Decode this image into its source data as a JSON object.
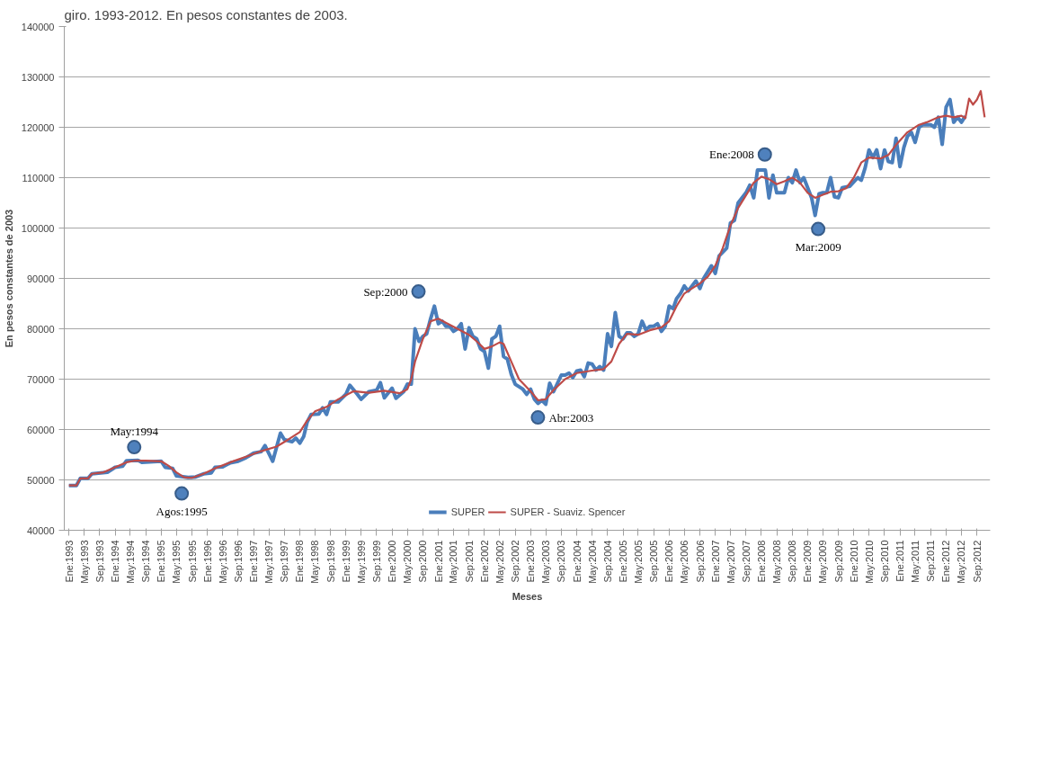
{
  "chart_data": {
    "type": "line",
    "title": "giro. 1993-2012. En pesos constantes de 2003.",
    "xlabel": "Meses",
    "ylabel": "En pesos constantes de 2003",
    "series": [
      {
        "name": "SUPER",
        "color": "#4a7ebb",
        "x": [
          "1993-01",
          "1993-03",
          "1993-04",
          "1993-06",
          "1993-07",
          "1993-11",
          "1994-01",
          "1994-03",
          "1994-04",
          "1994-07",
          "1994-08",
          "1995-01",
          "1995-02",
          "1995-04",
          "1995-05",
          "1995-08",
          "1995-10",
          "1995-12",
          "1996-02",
          "1996-03",
          "1996-05",
          "1996-07",
          "1996-09",
          "1996-11",
          "1997-01",
          "1997-03",
          "1997-04",
          "1997-06",
          "1997-08",
          "1997-09",
          "1997-11",
          "1997-12",
          "1998-01",
          "1998-02",
          "1998-03",
          "1998-04",
          "1998-06",
          "1998-07",
          "1998-08",
          "1998-09",
          "1998-11",
          "1999-01",
          "1999-02",
          "1999-04",
          "1999-05",
          "1999-07",
          "1999-09",
          "1999-10",
          "1999-11",
          "2000-01",
          "2000-02",
          "2000-04",
          "2000-05",
          "2000-06",
          "2000-07",
          "2000-08",
          "2000-09",
          "2000-10",
          "2000-11",
          "2000-12",
          "2001-01",
          "2001-02",
          "2001-03",
          "2001-04",
          "2001-05",
          "2001-06",
          "2001-07",
          "2001-08",
          "2001-09",
          "2001-10",
          "2001-11",
          "2001-12",
          "2002-01",
          "2002-02",
          "2002-03",
          "2002-04",
          "2002-05",
          "2002-06",
          "2002-07",
          "2002-08",
          "2002-09",
          "2002-11",
          "2002-12",
          "2003-01",
          "2003-02",
          "2003-03",
          "2003-04",
          "2003-05",
          "2003-06",
          "2003-07",
          "2003-09",
          "2003-10",
          "2003-11",
          "2003-12",
          "2004-01",
          "2004-02",
          "2004-03",
          "2004-04",
          "2004-05",
          "2004-06",
          "2004-07",
          "2004-08",
          "2004-09",
          "2004-10",
          "2004-11",
          "2004-12",
          "2005-01",
          "2005-02",
          "2005-03",
          "2005-04",
          "2005-05",
          "2005-06",
          "2005-07",
          "2005-08",
          "2005-09",
          "2005-10",
          "2005-11",
          "2005-12",
          "2006-01",
          "2006-02",
          "2006-03",
          "2006-04",
          "2006-05",
          "2006-06",
          "2006-07",
          "2006-08",
          "2006-09",
          "2006-10",
          "2006-12",
          "2007-01",
          "2007-02",
          "2007-04",
          "2007-05",
          "2007-06",
          "2007-07",
          "2007-09",
          "2007-10",
          "2007-11",
          "2007-12",
          "2008-02",
          "2008-03",
          "2008-04",
          "2008-05",
          "2008-07",
          "2008-08",
          "2008-09",
          "2008-10",
          "2008-11",
          "2008-12",
          "2009-02",
          "2009-03",
          "2009-04",
          "2009-05",
          "2009-06",
          "2009-07",
          "2009-08",
          "2009-09",
          "2009-10",
          "2009-12",
          "2010-02",
          "2010-03",
          "2010-04",
          "2010-05",
          "2010-06",
          "2010-07",
          "2010-08",
          "2010-09",
          "2010-10",
          "2010-11",
          "2010-12",
          "2011-01",
          "2011-02",
          "2011-03",
          "2011-04",
          "2011-05",
          "2011-06",
          "2011-07",
          "2011-08",
          "2011-09",
          "2011-10",
          "2011-11",
          "2011-12",
          "2012-01",
          "2012-02",
          "2012-03",
          "2012-04",
          "2012-05",
          "2012-06"
        ],
        "values": [
          48900,
          48900,
          50300,
          50300,
          51200,
          51500,
          52500,
          52700,
          53800,
          53900,
          53500,
          53700,
          52500,
          52300,
          50800,
          50500,
          50600,
          51200,
          51400,
          52500,
          52600,
          53400,
          53700,
          54400,
          55300,
          55600,
          56800,
          53700,
          59300,
          58000,
          57600,
          58300,
          57300,
          58600,
          61500,
          63000,
          63100,
          64300,
          63000,
          65500,
          65500,
          67000,
          68800,
          67000,
          66000,
          67500,
          67800,
          69300,
          66300,
          68200,
          66200,
          67500,
          69000,
          69000,
          80000,
          77500,
          78500,
          79000,
          82000,
          84500,
          81000,
          81500,
          80500,
          80500,
          79500,
          80000,
          81000,
          76000,
          80200,
          78500,
          78000,
          76000,
          75500,
          72200,
          78000,
          78500,
          80500,
          74500,
          74000,
          71000,
          69000,
          68000,
          67000,
          68000,
          66000,
          65200,
          65800,
          65000,
          69200,
          67500,
          70800,
          70800,
          71200,
          70300,
          71600,
          71800,
          70500,
          73200,
          73000,
          71800,
          72500,
          71800,
          79000,
          76500,
          83200,
          78500,
          78000,
          79200,
          79200,
          78500,
          79000,
          81500,
          79800,
          80500,
          80500,
          81000,
          79500,
          80500,
          84500,
          84000,
          86000,
          87000,
          88500,
          87500,
          88500,
          89500,
          88000,
          90000,
          92500,
          91000,
          94500,
          96000,
          101000,
          101500,
          105000,
          107000,
          108500,
          106000,
          111500,
          111500,
          106000,
          110500,
          107000,
          107000,
          110000,
          109000,
          111500,
          109000,
          110000,
          106000,
          102500,
          106800,
          107000,
          107000,
          110000,
          106200,
          106000,
          108000,
          108300,
          110000,
          109500,
          112000,
          115500,
          114000,
          115500,
          111800,
          115500,
          113200,
          113000,
          117800,
          112200,
          116000,
          118200,
          119000,
          117000,
          120000,
          120500,
          120500,
          120500,
          120000,
          122000,
          116600,
          124000,
          125500,
          121000,
          122000,
          121000,
          122200
        ]
      },
      {
        "name": "SUPER - Suaviz. Spencer",
        "color": "#be4b48",
        "x": [
          "1993-01",
          "1993-03",
          "1993-04",
          "1993-06",
          "1993-07",
          "1993-10",
          "1994-01",
          "1994-04",
          "1994-06",
          "1994-09",
          "1995-01",
          "1995-03",
          "1995-05",
          "1995-07",
          "1995-09",
          "1995-12",
          "1996-03",
          "1996-07",
          "1996-11",
          "1997-03",
          "1997-07",
          "1997-10",
          "1998-01",
          "1998-03",
          "1998-05",
          "1998-08",
          "1998-11",
          "1999-03",
          "1999-07",
          "1999-11",
          "2000-03",
          "2000-05",
          "2000-06",
          "2000-07",
          "2000-09",
          "2000-11",
          "2001-01",
          "2001-03",
          "2001-06",
          "2001-09",
          "2001-11",
          "2002-01",
          "2002-03",
          "2002-05",
          "2002-06",
          "2002-08",
          "2002-10",
          "2003-01",
          "2003-03",
          "2003-05",
          "2003-07",
          "2003-10",
          "2004-01",
          "2004-05",
          "2004-08",
          "2004-10",
          "2004-12",
          "2005-02",
          "2005-05",
          "2005-08",
          "2005-11",
          "2006-01",
          "2006-03",
          "2006-05",
          "2006-07",
          "2006-09",
          "2006-11",
          "2007-01",
          "2007-03",
          "2007-05",
          "2007-07",
          "2007-09",
          "2007-11",
          "2008-01",
          "2008-03",
          "2008-05",
          "2008-07",
          "2008-09",
          "2008-11",
          "2009-01",
          "2009-03",
          "2009-05",
          "2009-07",
          "2009-09",
          "2009-11",
          "2010-01",
          "2010-03",
          "2010-05",
          "2010-08",
          "2010-10",
          "2010-12",
          "2011-03",
          "2011-06",
          "2011-08",
          "2011-11",
          "2012-01",
          "2012-03",
          "2012-05",
          "2012-06",
          "2012-07",
          "2012-08",
          "2012-09",
          "2012-10",
          "2012-11"
        ],
        "values": [
          48900,
          48900,
          50300,
          50300,
          51200,
          51500,
          52500,
          53500,
          53800,
          53800,
          53700,
          52800,
          51500,
          50500,
          50400,
          51200,
          52300,
          53500,
          54600,
          55700,
          56600,
          58000,
          59500,
          61800,
          63600,
          64500,
          66000,
          67600,
          67300,
          67700,
          67200,
          68000,
          70000,
          73500,
          78000,
          81500,
          82000,
          81200,
          80000,
          78800,
          77500,
          76000,
          76500,
          77300,
          77000,
          73500,
          70000,
          67600,
          65800,
          66000,
          67800,
          70000,
          71200,
          71700,
          72000,
          73500,
          77000,
          79000,
          78800,
          79700,
          80300,
          81500,
          84500,
          87000,
          88000,
          89000,
          90300,
          92500,
          96000,
          100500,
          104000,
          106500,
          109000,
          110200,
          109700,
          108700,
          109300,
          110000,
          109000,
          107000,
          106000,
          106600,
          107200,
          107300,
          107900,
          110000,
          113000,
          114000,
          113800,
          114500,
          116500,
          119000,
          120500,
          121000,
          122000,
          122300,
          122000,
          122300,
          121800,
          125700,
          124500,
          125500,
          127200,
          122000
        ]
      }
    ],
    "annotations": [
      {
        "text": "May:1994",
        "x": "1994-06-01",
        "y": 56500
      },
      {
        "text": "Agos:1995",
        "x": "1995-06-12",
        "y": 47300
      },
      {
        "text": "Sep:2000",
        "x": "2000-07-28",
        "y": 87400
      },
      {
        "text": "Abr:2003",
        "x": "2003-02-28",
        "y": 62400
      },
      {
        "text": "Ene:2008",
        "x": "2008-01-28",
        "y": 114600
      },
      {
        "text": "Mar:2009",
        "x": "2009-03-25",
        "y": 99800
      }
    ],
    "xlim": [
      "1992-11-25",
      "2012-12-15"
    ],
    "ylim": [
      40000,
      140000
    ],
    "yticks": [
      40000,
      50000,
      60000,
      70000,
      80000,
      90000,
      100000,
      110000,
      120000,
      130000,
      140000
    ],
    "xticks": [
      {
        "value": "1993-01",
        "label": "Ene:1993"
      },
      {
        "value": "1993-05",
        "label": "May:1993"
      },
      {
        "value": "1993-09",
        "label": "Sep:1993"
      },
      {
        "value": "1994-01",
        "label": "Ene:1994"
      },
      {
        "value": "1994-05",
        "label": "May:1994"
      },
      {
        "value": "1994-09",
        "label": "Sep:1994"
      },
      {
        "value": "1995-01",
        "label": "Ene:1995"
      },
      {
        "value": "1995-05",
        "label": "May:1995"
      },
      {
        "value": "1995-09",
        "label": "Sep:1995"
      },
      {
        "value": "1996-01",
        "label": "Ene:1996"
      },
      {
        "value": "1996-05",
        "label": "May:1996"
      },
      {
        "value": "1996-09",
        "label": "Sep:1996"
      },
      {
        "value": "1997-01",
        "label": "Ene:1997"
      },
      {
        "value": "1997-05",
        "label": "May:1997"
      },
      {
        "value": "1997-09",
        "label": "Sep:1997"
      },
      {
        "value": "1998-01",
        "label": "Ene:1998"
      },
      {
        "value": "1998-05",
        "label": "May:1998"
      },
      {
        "value": "1998-09",
        "label": "Sep:1998"
      },
      {
        "value": "1999-01",
        "label": "Ene:1999"
      },
      {
        "value": "1999-05",
        "label": "May:1999"
      },
      {
        "value": "1999-09",
        "label": "Sep:1999"
      },
      {
        "value": "2000-01",
        "label": "Ene:2000"
      },
      {
        "value": "2000-05",
        "label": "May:2000"
      },
      {
        "value": "2000-09",
        "label": "Sep:2000"
      },
      {
        "value": "2001-01",
        "label": "Ene:2001"
      },
      {
        "value": "2001-05",
        "label": "May:2001"
      },
      {
        "value": "2001-09",
        "label": "Sep:2001"
      },
      {
        "value": "2002-01",
        "label": "Ene:2002"
      },
      {
        "value": "2002-05",
        "label": "May:2002"
      },
      {
        "value": "2002-09",
        "label": "Sep:2002"
      },
      {
        "value": "2003-01",
        "label": "Ene:2003"
      },
      {
        "value": "2003-05",
        "label": "May:2003"
      },
      {
        "value": "2003-09",
        "label": "Sep:2003"
      },
      {
        "value": "2004-01",
        "label": "Ene:2004"
      },
      {
        "value": "2004-05",
        "label": "May:2004"
      },
      {
        "value": "2004-09",
        "label": "Sep:2004"
      },
      {
        "value": "2005-01",
        "label": "Ene:2005"
      },
      {
        "value": "2005-05",
        "label": "May:2005"
      },
      {
        "value": "2005-09",
        "label": "Sep:2005"
      },
      {
        "value": "2006-01",
        "label": "Ene:2006"
      },
      {
        "value": "2006-05",
        "label": "May:2006"
      },
      {
        "value": "2006-09",
        "label": "Sep:2006"
      },
      {
        "value": "2007-01",
        "label": "Ene:2007"
      },
      {
        "value": "2007-05",
        "label": "May:2007"
      },
      {
        "value": "2007-09",
        "label": "Sep:2007"
      },
      {
        "value": "2008-01",
        "label": "Ene:2008"
      },
      {
        "value": "2008-05",
        "label": "May:2008"
      },
      {
        "value": "2008-09",
        "label": "Sep:2008"
      },
      {
        "value": "2009-01",
        "label": "Ene:2009"
      },
      {
        "value": "2009-05",
        "label": "May:2009"
      },
      {
        "value": "2009-09",
        "label": "Sep:2009"
      },
      {
        "value": "2010-01",
        "label": "Ene:2010"
      },
      {
        "value": "2010-05",
        "label": "May:2010"
      },
      {
        "value": "2010-09",
        "label": "Sep:2010"
      },
      {
        "value": "2011-01",
        "label": "Ene:2011"
      },
      {
        "value": "2011-05",
        "label": "May:2011"
      },
      {
        "value": "2011-09",
        "label": "Sep:2011"
      },
      {
        "value": "2012-01",
        "label": "Ene:2012"
      },
      {
        "value": "2012-05",
        "label": "May:2012"
      },
      {
        "value": "2012-09",
        "label": "Sep:2012"
      }
    ],
    "grid": "y",
    "legend": "bottom",
    "marker": "none",
    "line_style": "solid"
  }
}
